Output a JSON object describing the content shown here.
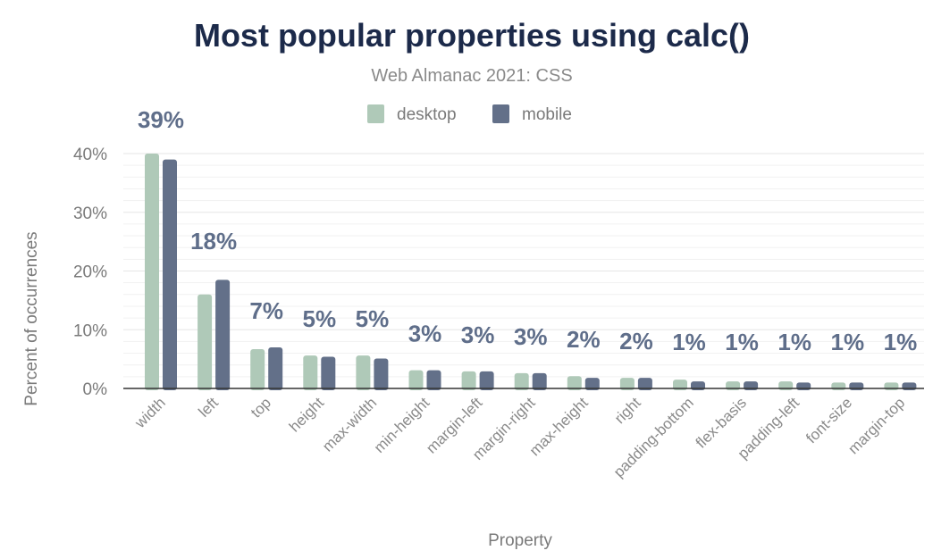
{
  "chart_data": {
    "type": "bar",
    "title": "Most popular properties using calc()",
    "subtitle": "Web Almanac 2021: CSS",
    "xlabel": "Property",
    "ylabel": "Percent of occurrences",
    "ylim": [
      0,
      40
    ],
    "yticks": [
      "0%",
      "10%",
      "20%",
      "30%",
      "40%"
    ],
    "grid": true,
    "legend_position": "top-center",
    "categories": [
      "width",
      "left",
      "top",
      "height",
      "max-width",
      "min-height",
      "margin-left",
      "margin-right",
      "max-height",
      "right",
      "padding-bottom",
      "flex-basis",
      "padding-left",
      "font-size",
      "margin-top"
    ],
    "series": [
      {
        "name": "desktop",
        "color": "#afc9b8",
        "values": [
          40.0,
          16.0,
          6.7,
          5.6,
          5.6,
          3.1,
          2.9,
          2.6,
          2.1,
          1.8,
          1.5,
          1.2,
          1.2,
          1.0,
          1.0
        ]
      },
      {
        "name": "mobile",
        "color": "#637089",
        "values": [
          39.0,
          18.5,
          7.0,
          5.4,
          5.1,
          3.1,
          2.9,
          2.6,
          1.8,
          1.8,
          1.2,
          1.2,
          1.0,
          1.0,
          1.0
        ]
      }
    ],
    "data_labels": [
      "39%",
      "18%",
      "7%",
      "5%",
      "5%",
      "3%",
      "3%",
      "3%",
      "2%",
      "2%",
      "1%",
      "1%",
      "1%",
      "1%",
      "1%"
    ],
    "data_label_color": "#5f6e8a"
  }
}
